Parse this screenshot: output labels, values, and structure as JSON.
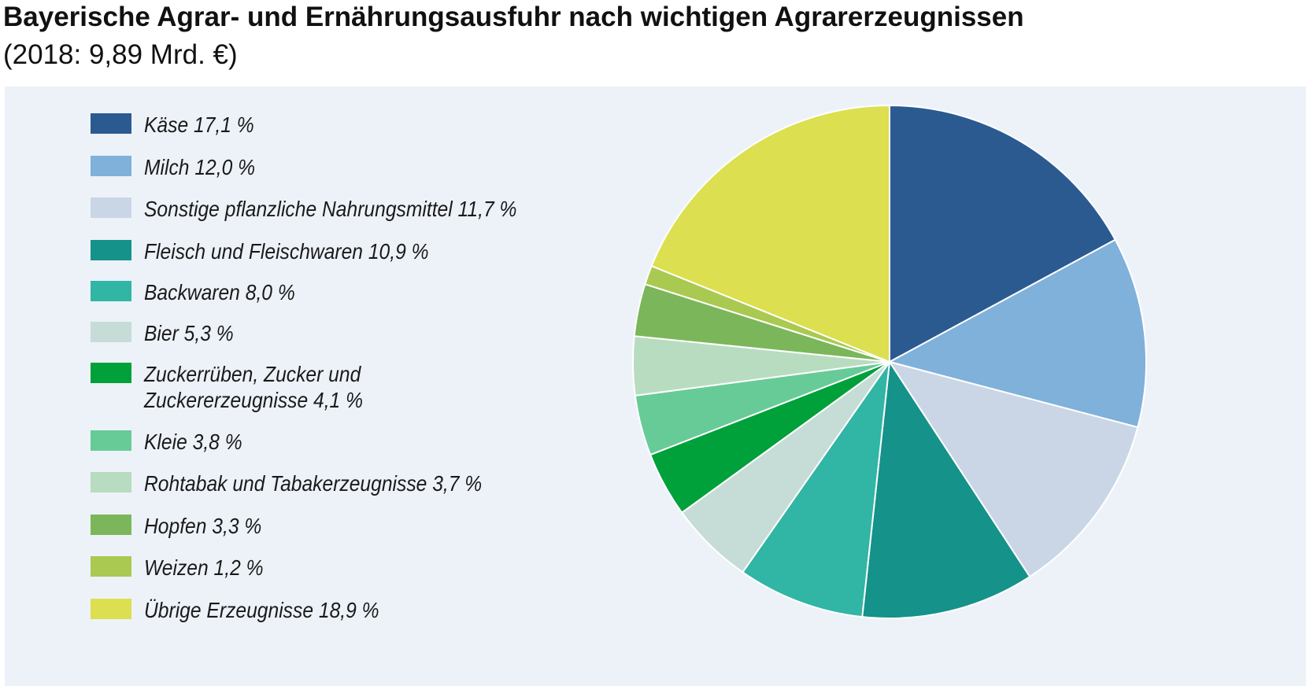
{
  "header": {
    "title": "Bayerische Agrar- und Ernährungsausfuhr nach wichtigen Agrarerzeugnissen",
    "subtitle": "(2018: 9,89 Mrd. €)"
  },
  "chart_data": {
    "type": "pie",
    "title": "Bayerische Agrar- und Ernährungsausfuhr nach wichtigen Agrarerzeugnissen",
    "subtitle": "(2018: 9,89 Mrd. €)",
    "legend_position": "left",
    "slices": [
      {
        "label": "Käse",
        "value": 17.1,
        "text": "Käse  17,1 %",
        "color": "#2b5a91"
      },
      {
        "label": "Milch",
        "value": 12.0,
        "text": "Milch  12,0 %",
        "color": "#7fb1da"
      },
      {
        "label": "Sonstige pflanzliche Nahrungsmittel",
        "value": 11.7,
        "text": "Sonstige pflanzliche Nahrungsmittel  11,7 %",
        "color": "#cad6e5"
      },
      {
        "label": "Fleisch und Fleischwaren",
        "value": 10.9,
        "text": "Fleisch und Fleischwaren  10,9 %",
        "color": "#15928a"
      },
      {
        "label": "Backwaren",
        "value": 8.0,
        "text": "Backwaren  8,0 %",
        "color": "#31b5a5"
      },
      {
        "label": "Bier",
        "value": 5.3,
        "text": "Bier  5,3 %",
        "color": "#c6ddd7"
      },
      {
        "label": "Zuckerrüben, Zucker und Zuckererzeugnisse",
        "value": 4.1,
        "text": "Zuckerrüben, Zucker und\nZuckererzeugnisse  4,1 %",
        "color": "#00a03a"
      },
      {
        "label": "Kleie",
        "value": 3.8,
        "text": "Kleie  3,8 %",
        "color": "#67cb98"
      },
      {
        "label": "Rohtabak und Tabakerzeugnisse",
        "value": 3.7,
        "text": "Rohtabak und Tabakerzeugnisse  3,7 %",
        "color": "#b8dcbf"
      },
      {
        "label": "Hopfen",
        "value": 3.3,
        "text": "Hopfen  3,3 %",
        "color": "#7bb75a"
      },
      {
        "label": "Weizen",
        "value": 1.2,
        "text": "Weizen  1,2 %",
        "color": "#a9c951"
      },
      {
        "label": "Übrige Erzeugnisse",
        "value": 18.9,
        "text": "Übrige Erzeugnisse  18,9 %",
        "color": "#dcdf4f"
      }
    ]
  }
}
